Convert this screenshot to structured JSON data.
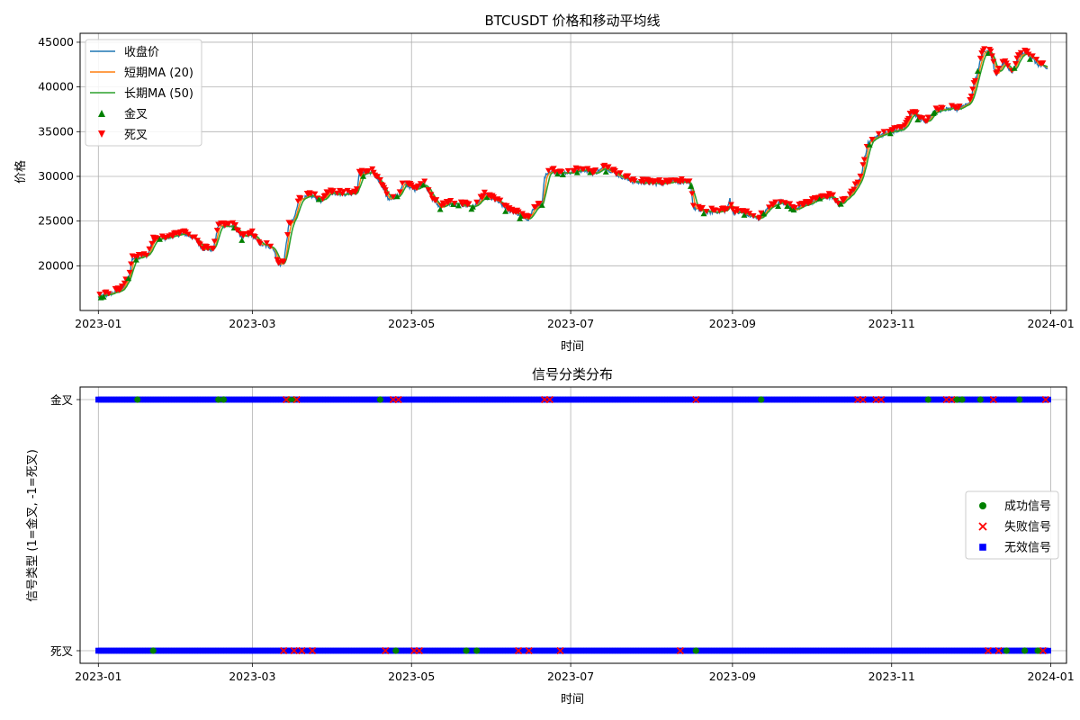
{
  "chart_data": [
    {
      "type": "line",
      "title": "BTCUSDT 价格和移动平均线",
      "xlabel": "时间",
      "ylabel": "价格",
      "x_range": [
        "2022-12-25",
        "2024-01-07"
      ],
      "ylim": [
        15000,
        46000
      ],
      "x_ticks": [
        "2023-01",
        "2023-03",
        "2023-05",
        "2023-07",
        "2023-09",
        "2023-11",
        "2024-01"
      ],
      "y_ticks": [
        20000,
        25000,
        30000,
        35000,
        40000,
        45000
      ],
      "grid": true,
      "legend_position": "upper-left",
      "series": [
        {
          "name": "收盘价",
          "color": "#1f77b4"
        },
        {
          "name": "短期MA (20)",
          "color": "#ff7f0e"
        },
        {
          "name": "长期MA (50)",
          "color": "#2ca02c"
        }
      ],
      "markers": [
        {
          "name": "金叉",
          "color": "#008000",
          "shape": "triangle-up"
        },
        {
          "name": "死叉",
          "color": "#ff0000",
          "shape": "triangle-down"
        }
      ],
      "price_path": [
        [
          "2023-01-01",
          16500
        ],
        [
          "2023-01-05",
          16800
        ],
        [
          "2023-01-10",
          17300
        ],
        [
          "2023-01-13",
          19000
        ],
        [
          "2023-01-14",
          20800
        ],
        [
          "2023-01-20",
          21200
        ],
        [
          "2023-01-22",
          22800
        ],
        [
          "2023-01-28",
          23200
        ],
        [
          "2023-02-03",
          23600
        ],
        [
          "2023-02-07",
          23000
        ],
        [
          "2023-02-10",
          21900
        ],
        [
          "2023-02-14",
          21800
        ],
        [
          "2023-02-16",
          24500
        ],
        [
          "2023-02-22",
          24400
        ],
        [
          "2023-02-25",
          23200
        ],
        [
          "2023-03-01",
          23500
        ],
        [
          "2023-03-04",
          22400
        ],
        [
          "2023-03-09",
          22000
        ],
        [
          "2023-03-11",
          20100
        ],
        [
          "2023-03-13",
          20300
        ],
        [
          "2023-03-15",
          24500
        ],
        [
          "2023-03-17",
          25200
        ],
        [
          "2023-03-19",
          27500
        ],
        [
          "2023-03-24",
          27800
        ],
        [
          "2023-03-28",
          27200
        ],
        [
          "2023-03-30",
          28200
        ],
        [
          "2023-04-05",
          28000
        ],
        [
          "2023-04-10",
          28200
        ],
        [
          "2023-04-11",
          30200
        ],
        [
          "2023-04-16",
          30500
        ],
        [
          "2023-04-19",
          29200
        ],
        [
          "2023-04-22",
          27500
        ],
        [
          "2023-04-26",
          27800
        ],
        [
          "2023-04-28",
          29300
        ],
        [
          "2023-05-02",
          28500
        ],
        [
          "2023-05-06",
          29200
        ],
        [
          "2023-05-09",
          27500
        ],
        [
          "2023-05-12",
          26500
        ],
        [
          "2023-05-15",
          27000
        ],
        [
          "2023-05-25",
          26600
        ],
        [
          "2023-05-29",
          27800
        ],
        [
          "2023-06-03",
          27200
        ],
        [
          "2023-06-07",
          26200
        ],
        [
          "2023-06-10",
          25900
        ],
        [
          "2023-06-15",
          25100
        ],
        [
          "2023-06-17",
          26500
        ],
        [
          "2023-06-20",
          26800
        ],
        [
          "2023-06-21",
          30000
        ],
        [
          "2023-06-24",
          30500
        ],
        [
          "2023-07-01",
          30400
        ],
        [
          "2023-07-06",
          30800
        ],
        [
          "2023-07-10",
          30300
        ],
        [
          "2023-07-14",
          31000
        ],
        [
          "2023-07-20",
          30000
        ],
        [
          "2023-07-25",
          29400
        ],
        [
          "2023-08-01",
          29200
        ],
        [
          "2023-08-05",
          29200
        ],
        [
          "2023-08-10",
          29500
        ],
        [
          "2023-08-16",
          29100
        ],
        [
          "2023-08-17",
          26500
        ],
        [
          "2023-08-20",
          26100
        ],
        [
          "2023-08-25",
          26000
        ],
        [
          "2023-08-30",
          26200
        ],
        [
          "2023-08-31",
          27500
        ],
        [
          "2023-09-01",
          26000
        ],
        [
          "2023-09-05",
          25900
        ],
        [
          "2023-09-11",
          25200
        ],
        [
          "2023-09-15",
          26500
        ],
        [
          "2023-09-20",
          27200
        ],
        [
          "2023-09-25",
          26300
        ],
        [
          "2023-09-30",
          26900
        ],
        [
          "2023-10-05",
          27600
        ],
        [
          "2023-10-09",
          27700
        ],
        [
          "2023-10-12",
          26800
        ],
        [
          "2023-10-17",
          28300
        ],
        [
          "2023-10-20",
          29700
        ],
        [
          "2023-10-23",
          33800
        ],
        [
          "2023-10-26",
          34400
        ],
        [
          "2023-11-01",
          35000
        ],
        [
          "2023-11-05",
          35200
        ],
        [
          "2023-11-09",
          37200
        ],
        [
          "2023-11-14",
          36000
        ],
        [
          "2023-11-17",
          37200
        ],
        [
          "2023-11-22",
          37500
        ],
        [
          "2023-11-26",
          37500
        ],
        [
          "2023-12-01",
          38300
        ],
        [
          "2023-12-04",
          41800
        ],
        [
          "2023-12-06",
          44000
        ],
        [
          "2023-12-09",
          43800
        ],
        [
          "2023-12-11",
          41200
        ],
        [
          "2023-12-14",
          42800
        ],
        [
          "2023-12-17",
          41500
        ],
        [
          "2023-12-20",
          43500
        ],
        [
          "2023-12-23",
          43800
        ],
        [
          "2023-12-27",
          42500
        ],
        [
          "2023-12-31",
          42000
        ]
      ]
    },
    {
      "type": "scatter",
      "title": "信号分类分布",
      "xlabel": "时间",
      "ylabel": "信号类型 (1=金叉, -1=死叉)",
      "x_range": [
        "2022-12-25",
        "2024-01-07"
      ],
      "y_ticks": [
        {
          "value": 1,
          "label": "金叉"
        },
        {
          "value": -1,
          "label": "死叉"
        }
      ],
      "x_ticks": [
        "2023-01",
        "2023-03",
        "2023-05",
        "2023-07",
        "2023-09",
        "2023-11",
        "2024-01"
      ],
      "grid": true,
      "legend_position": "center-right",
      "series": [
        {
          "name": "成功信号",
          "color": "#008000",
          "marker": "circle"
        },
        {
          "name": "失败信号",
          "color": "#ff0000",
          "marker": "x"
        },
        {
          "name": "无效信号",
          "color": "#0000ff",
          "marker": "square"
        }
      ],
      "signal_span": [
        "2023-01-01",
        "2023-12-31"
      ],
      "golden_success_dates": [
        "2023-01-16",
        "2023-02-16",
        "2023-02-18",
        "2023-03-15",
        "2023-03-17",
        "2023-04-19",
        "2023-09-12",
        "2023-11-15",
        "2023-11-26",
        "2023-11-28",
        "2023-12-05",
        "2023-12-20"
      ],
      "golden_fail_dates": [
        "2023-03-14",
        "2023-03-18",
        "2023-04-24",
        "2023-04-26",
        "2023-06-21",
        "2023-06-23",
        "2023-08-18",
        "2023-10-19",
        "2023-10-21",
        "2023-10-26",
        "2023-10-28",
        "2023-11-22",
        "2023-11-24",
        "2023-12-10",
        "2023-12-30"
      ],
      "death_success_dates": [
        "2023-01-22",
        "2023-04-25",
        "2023-05-22",
        "2023-05-26",
        "2023-08-18",
        "2023-12-15",
        "2023-12-22",
        "2023-12-27"
      ],
      "death_fail_dates": [
        "2023-03-13",
        "2023-03-17",
        "2023-03-20",
        "2023-03-24",
        "2023-04-21",
        "2023-05-02",
        "2023-05-04",
        "2023-06-11",
        "2023-06-15",
        "2023-06-27",
        "2023-08-12",
        "2023-12-08",
        "2023-12-12",
        "2023-12-29"
      ]
    }
  ]
}
